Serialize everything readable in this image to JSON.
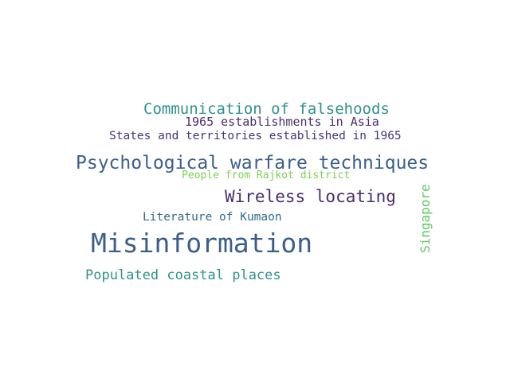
{
  "words": [
    {
      "text": "Communication of falsehoods",
      "color": "#2f918c"
    },
    {
      "text": "1965 establishments in Asia",
      "color": "#4a2c6e"
    },
    {
      "text": "States and territories established in 1965",
      "color": "#46337e"
    },
    {
      "text": "Psychological warfare techniques",
      "color": "#3b5f8a"
    },
    {
      "text": "People from Rajkot district",
      "color": "#7ad151"
    },
    {
      "text": "Wireless locating",
      "color": "#4a2c6e"
    },
    {
      "text": "Literature of Kumaon",
      "color": "#31688e"
    },
    {
      "text": "Misinformation",
      "color": "#3b5f8a"
    },
    {
      "text": "Populated coastal places",
      "color": "#2f918c"
    },
    {
      "text": "Singapore",
      "color": "#5ec962"
    }
  ]
}
